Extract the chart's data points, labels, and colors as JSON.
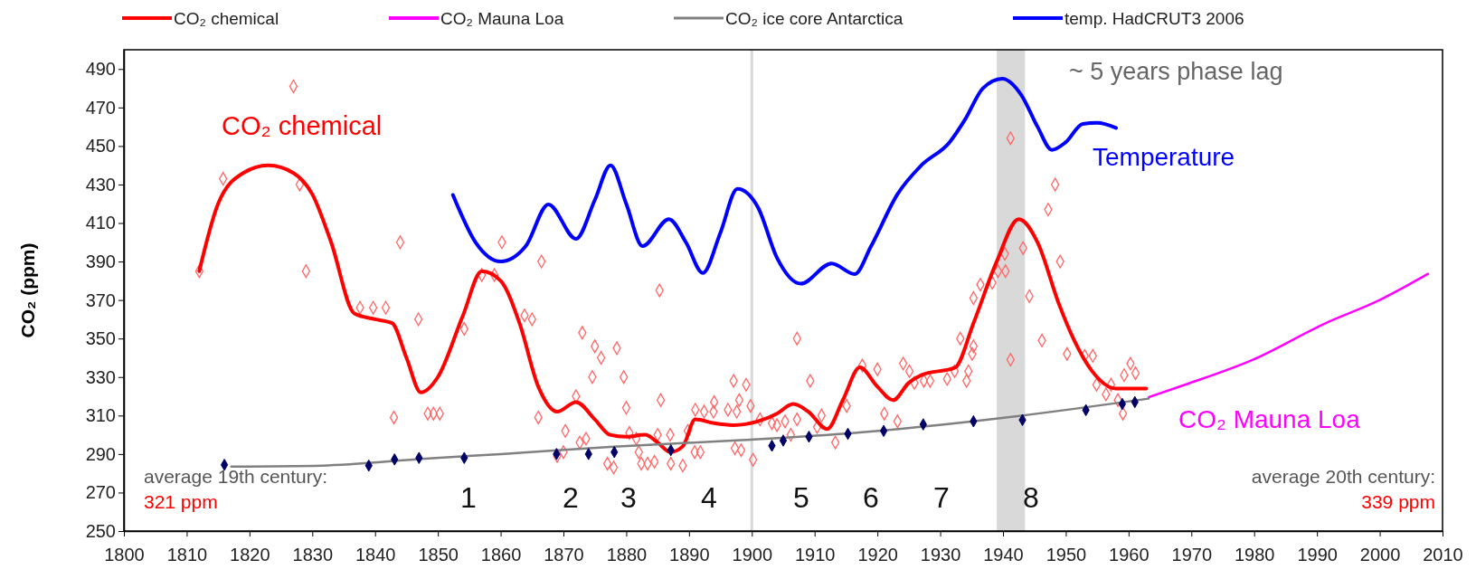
{
  "chart_data": {
    "type": "line",
    "ylabel": "CO₂ (ppm)",
    "xlim": [
      1800,
      2010
    ],
    "xticks": [
      1800,
      1810,
      1820,
      1830,
      1840,
      1850,
      1860,
      1870,
      1880,
      1890,
      1900,
      1910,
      1920,
      1930,
      1940,
      1950,
      1960,
      1970,
      1980,
      1990,
      2000,
      2010
    ],
    "ylim": [
      250,
      500
    ],
    "yticks": [
      250,
      270,
      290,
      310,
      330,
      350,
      370,
      390,
      410,
      430,
      450,
      470,
      490
    ],
    "grid": false,
    "legend": "top",
    "series": [
      {
        "type": "scatter",
        "marker": "diamond",
        "color": "#ff6666",
        "x": [
          1812,
          1815.8,
          1827,
          1828,
          1829,
          1837.6,
          1839.7,
          1841.7,
          1843,
          1844,
          1846.9,
          1848.4,
          1849.3,
          1850.3,
          1854.2,
          1857,
          1859,
          1860.2,
          1863.8,
          1865,
          1866,
          1866.5,
          1869,
          1870,
          1870.3,
          1872,
          1872.6,
          1873,
          1873.6,
          1874.6,
          1875,
          1876,
          1877,
          1878,
          1878.5,
          1879.6,
          1880,
          1880.5,
          1881.6,
          1882,
          1882.4,
          1883.4,
          1884.5,
          1885,
          1885.3,
          1885.5,
          1887,
          1887.1,
          1889,
          1889.8,
          1890.9,
          1891,
          1891.8,
          1892.4,
          1893.9,
          1894,
          1896.2,
          1897.1,
          1897.3,
          1897.6,
          1898,
          1898.3,
          1899.1,
          1899.8,
          1900.2,
          1901.3,
          1903.2,
          1904,
          1905.3,
          1906.2,
          1907.2,
          1907.2,
          1909.3,
          1910.4,
          1911.1,
          1913.3,
          1915.1,
          1917.6,
          1920,
          1921.1,
          1923.2,
          1924.1,
          1925.1,
          1925.9,
          1927.4,
          1928.4,
          1931.1,
          1932.3,
          1933.2,
          1934.2,
          1934.5,
          1935.1,
          1935.3,
          1935.3,
          1936.4,
          1938.3,
          1939.2,
          1940.3,
          1940.4,
          1941.2,
          1941.2,
          1943.2,
          1944.2,
          1946.2,
          1947.2,
          1948.3,
          1949.1,
          1950.2,
          1953,
          1954.3,
          1954.9,
          1956.4,
          1957.2,
          1958.3,
          1959.1,
          1959.3,
          1960.3,
          1961.1
        ],
        "values": [
          385,
          433,
          481,
          430,
          385,
          366,
          366,
          366,
          309,
          400,
          360,
          311,
          311,
          311,
          355,
          383,
          383,
          400,
          362,
          360,
          309,
          390,
          289,
          291,
          302,
          320,
          296,
          353,
          298,
          330,
          346,
          340,
          285,
          283,
          345,
          330,
          314,
          301,
          298,
          291,
          285,
          285,
          286,
          300,
          375,
          318,
          300,
          285,
          284,
          302,
          291,
          313,
          291,
          312,
          312,
          317,
          313,
          328,
          293,
          312,
          318,
          292,
          326,
          315,
          287,
          308,
          306,
          305,
          307,
          300,
          350,
          308,
          328,
          304,
          310,
          296,
          315,
          336,
          334,
          311,
          307,
          337,
          333,
          327,
          328,
          328,
          329,
          333,
          350,
          328,
          333,
          342,
          346,
          371,
          378,
          379,
          385,
          394,
          385,
          454,
          339,
          397,
          372,
          349,
          417,
          430,
          390,
          342,
          341,
          341,
          326,
          321,
          326,
          318,
          311,
          331,
          337,
          332
        ]
      },
      {
        "name": "CO₂ chemical",
        "color": "#ff0000",
        "x": [
          1812,
          1815,
          1819,
          1823,
          1827,
          1830,
          1833,
          1836.7,
          1840,
          1842.7,
          1845,
          1847.3,
          1850,
          1854,
          1857,
          1860,
          1863,
          1866,
          1869,
          1872,
          1875,
          1877.4,
          1880,
          1883,
          1885,
          1887,
          1889,
          1891,
          1894,
          1897,
          1901,
          1904,
          1906.6,
          1909,
          1912,
          1914.5,
          1917.2,
          1920,
          1922.5,
          1925,
          1927,
          1932.4,
          1935.3,
          1939,
          1942.5,
          1945.5,
          1948.9,
          1951.2,
          1954.2,
          1958,
          1962.8
        ],
        "values": [
          385,
          420,
          436,
          440,
          436,
          425,
          400,
          363,
          360,
          358,
          340,
          322,
          330,
          362,
          385,
          380,
          358,
          325,
          312,
          317,
          308,
          300,
          299,
          300,
          296,
          291,
          294,
          308,
          306,
          305,
          307,
          311,
          316,
          312,
          303,
          318,
          335,
          325,
          318,
          327,
          331,
          335,
          358,
          390,
          412,
          400,
          368,
          350,
          333,
          324,
          324
        ]
      },
      {
        "name": "CO₂  Mauna Loa",
        "color": "#ff00ff",
        "x": [
          1963.2,
          1969,
          1979.8,
          1991.2,
          2000,
          2007.7
        ],
        "values": [
          319.5,
          326,
          339,
          357.7,
          370,
          383.6
        ]
      },
      {
        "name": "CO₂ ice core Antarctica",
        "color": "#808080",
        "x": [
          1817.1,
          1831.5,
          1848,
          1860,
          1878,
          1896.9,
          1916.4,
          1942,
          1963.2
        ],
        "values": [
          283.5,
          284,
          287.6,
          290,
          293.8,
          297,
          301,
          309.6,
          318.8
        ]
      },
      {
        "type": "scatter",
        "marker": "diamond",
        "color": "#000066",
        "x": [
          1816,
          1839,
          1843.1,
          1847,
          1854.2,
          1868.9,
          1874,
          1878.1,
          1887.1,
          1903.2,
          1905,
          1909.1,
          1915.3,
          1921,
          1927.3,
          1935.3,
          1943.1,
          1953.2,
          1959,
          1961
        ],
        "values": [
          284.4,
          284,
          287.2,
          288,
          288,
          290,
          290,
          291,
          292,
          294.3,
          297,
          299,
          300.5,
          302,
          305.4,
          307,
          307.7,
          312.8,
          316,
          317
        ]
      },
      {
        "name": "temp. HadCRUT3 2006",
        "color": "#0000ff",
        "x": [
          1852.4,
          1856,
          1860,
          1864,
          1867.6,
          1872,
          1875,
          1877.5,
          1880,
          1882.6,
          1886.8,
          1889.5,
          1892.2,
          1895,
          1897.7,
          1901,
          1904,
          1907.8,
          1912.7,
          1916.4,
          1919,
          1923.2,
          1927,
          1931.5,
          1934,
          1936.8,
          1939.9,
          1942.9,
          1945.5,
          1947.8,
          1950,
          1952.7,
          1955,
          1958
        ],
        "values": [
          424.6,
          400,
          390,
          398,
          419.7,
          401.8,
          422,
          440,
          420,
          398,
          412,
          400,
          384,
          405,
          427.7,
          418,
          392,
          378.5,
          389,
          383.5,
          398,
          425,
          440,
          452,
          464,
          480,
          485,
          476.6,
          460,
          448,
          452,
          461.5,
          462,
          459.4
        ]
      }
    ],
    "bands": [
      {
        "axis": "x",
        "from": 1939,
        "to": 1943.5,
        "color": "#d9d9d9"
      }
    ],
    "ref_lines": [
      {
        "axis": "x",
        "value": 1900,
        "color": "#d9d9d9"
      }
    ],
    "annotations": [
      "CO₂ chemical",
      "Temperature",
      "CO₂ Mauna Loa",
      "~ 5 years phase lag",
      "average 19th century:",
      "321 ppm",
      "average 20th century:",
      "339 ppm",
      "1",
      "2",
      "3",
      "4",
      "5",
      "6",
      "7",
      "8"
    ]
  }
}
